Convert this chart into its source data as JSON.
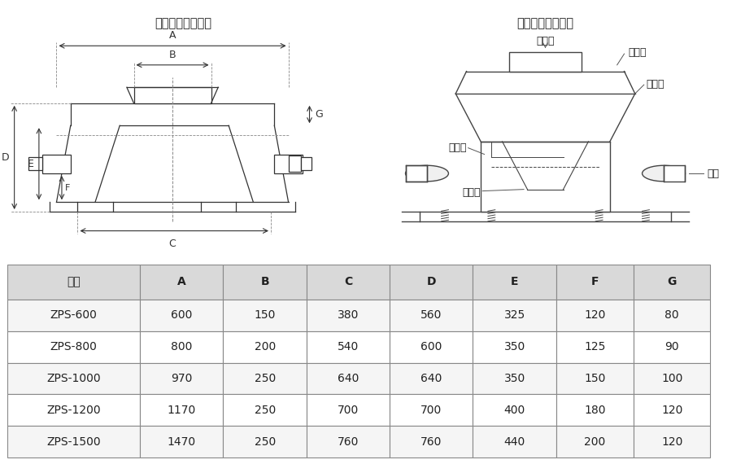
{
  "title_left": "直排筛外形尺寸图",
  "title_right": "直排筛外形结构图",
  "table_headers": [
    "型号",
    "A",
    "B",
    "C",
    "D",
    "E",
    "F",
    "G"
  ],
  "table_rows": [
    [
      "ZPS-600",
      "600",
      "150",
      "380",
      "560",
      "325",
      "120",
      "80"
    ],
    [
      "ZPS-800",
      "800",
      "200",
      "540",
      "600",
      "350",
      "125",
      "90"
    ],
    [
      "ZPS-1000",
      "970",
      "250",
      "640",
      "640",
      "350",
      "150",
      "100"
    ],
    [
      "ZPS-1200",
      "1170",
      "250",
      "700",
      "700",
      "400",
      "180",
      "120"
    ],
    [
      "ZPS-1500",
      "1470",
      "250",
      "760",
      "760",
      "440",
      "200",
      "120"
    ]
  ],
  "header_bg": "#d9d9d9",
  "row_alt_bg": "#f5f5f5",
  "row_bg": "#ffffff",
  "border_color": "#888888",
  "text_color": "#222222",
  "diagram_line_color": "#333333",
  "label_fontsize": 9,
  "title_fontsize": 10.5,
  "table_fontsize": 10,
  "right_labels": [
    "进料口",
    "防尘盖",
    "上框体",
    "排杂口",
    "出料口",
    "电机"
  ]
}
